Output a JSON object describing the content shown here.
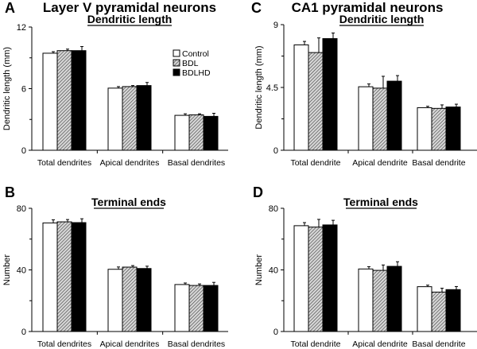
{
  "legend": [
    "Control",
    "BDL",
    "BDLHD"
  ],
  "colors": {
    "control": "#ffffff",
    "bdl": "hatched",
    "bdlhd": "#000000"
  },
  "chart_data": [
    {
      "panel": "A",
      "type": "bar",
      "title": "Layer V pyramidal neurons",
      "subtitle": "Dendritic length",
      "ylabel": "Dendritic length (mm)",
      "ylim": [
        0,
        12
      ],
      "yticks": [
        0,
        6,
        12
      ],
      "categories": [
        "Total dendrites",
        "Apical dendrites",
        "Basal dendrites"
      ],
      "series": [
        {
          "name": "Control",
          "values": [
            9.45,
            6.05,
            3.4
          ],
          "errors": [
            0.15,
            0.15,
            0.15
          ]
        },
        {
          "name": "BDL",
          "values": [
            9.7,
            6.2,
            3.45
          ],
          "errors": [
            0.15,
            0.1,
            0.1
          ]
        },
        {
          "name": "BDLHD",
          "values": [
            9.7,
            6.3,
            3.3
          ],
          "errors": [
            0.4,
            0.3,
            0.3
          ]
        }
      ]
    },
    {
      "panel": "B",
      "type": "bar",
      "title": "",
      "subtitle": "Terminal ends",
      "ylabel": "Number",
      "ylim": [
        0,
        80
      ],
      "yticks": [
        0,
        40,
        80
      ],
      "categories": [
        "Total dendrites",
        "Apical dendrites",
        "Basal dendrites"
      ],
      "series": [
        {
          "name": "Control",
          "values": [
            70.5,
            40.4,
            30.5
          ],
          "errors": [
            2,
            1.5,
            1
          ]
        },
        {
          "name": "BDL",
          "values": [
            71.2,
            41.8,
            29.9
          ],
          "errors": [
            1.5,
            1,
            1
          ]
        },
        {
          "name": "BDLHD",
          "values": [
            70.7,
            40.9,
            29.9
          ],
          "errors": [
            2.5,
            1.5,
            2
          ]
        }
      ]
    },
    {
      "panel": "C",
      "type": "bar",
      "title": "CA1 pyramidal neurons",
      "subtitle": "Dendritic length",
      "ylabel": "Dendritic length (mm)",
      "ylim": [
        0,
        9
      ],
      "yticks": [
        0,
        4.5,
        9
      ],
      "categories": [
        "Total dendrite",
        "Apical dendrite",
        "Basal dendrite"
      ],
      "series": [
        {
          "name": "Control",
          "values": [
            7.55,
            4.55,
            3.05
          ],
          "errors": [
            0.25,
            0.2,
            0.1
          ]
        },
        {
          "name": "BDL",
          "values": [
            7.0,
            4.45,
            3.0
          ],
          "errors": [
            1.05,
            0.85,
            0.25
          ]
        },
        {
          "name": "BDLHD",
          "values": [
            8.0,
            4.95,
            3.1
          ],
          "errors": [
            0.4,
            0.4,
            0.2
          ]
        }
      ]
    },
    {
      "panel": "D",
      "type": "bar",
      "title": "",
      "subtitle": "Terminal ends",
      "ylabel": "Number",
      "ylim": [
        0,
        80
      ],
      "yticks": [
        0,
        40,
        80
      ],
      "categories": [
        "Total dendrite",
        "Apical dendrite",
        "Basal dendrite"
      ],
      "series": [
        {
          "name": "Control",
          "values": [
            68.7,
            40.6,
            29.1
          ],
          "errors": [
            2,
            1.5,
            1
          ]
        },
        {
          "name": "BDL",
          "values": [
            67.8,
            39.7,
            25.6
          ],
          "errors": [
            5,
            3.5,
            2.5
          ]
        },
        {
          "name": "BDLHD",
          "values": [
            69.2,
            42.3,
            27.2
          ],
          "errors": [
            3,
            3,
            2
          ]
        }
      ]
    }
  ]
}
